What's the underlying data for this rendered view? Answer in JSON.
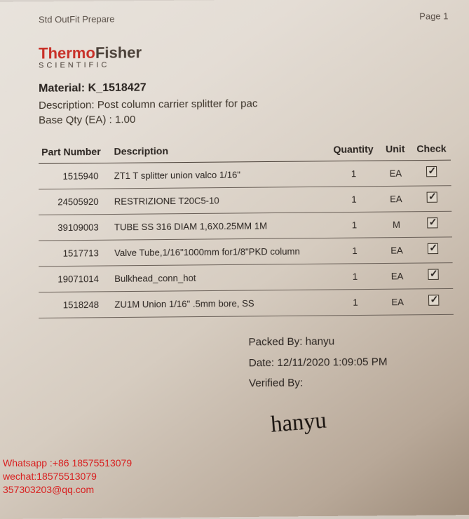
{
  "header": {
    "title_left": "Std OutFit Prepare",
    "title_right": "Page 1"
  },
  "logo": {
    "line1a": "Thermo",
    "line1b": "Fisher",
    "line2": "SCIENTIFIC"
  },
  "material": {
    "label": "Material:",
    "value": "K_1518427",
    "desc_label": "Description:",
    "desc_value": "Post column carrier splitter for pac",
    "base_label": "Base Qty  (EA) :",
    "base_value": "1.00"
  },
  "columns": {
    "part": "Part Number",
    "desc": "Description",
    "qty": "Quantity",
    "unit": "Unit",
    "check": "Check"
  },
  "rows": [
    {
      "part": "1515940",
      "desc": "ZT1 T splitter union valco 1/16\"",
      "qty": "1",
      "unit": "EA",
      "checked": true
    },
    {
      "part": "24505920",
      "desc": "RESTRIZIONE T20C5-10",
      "qty": "1",
      "unit": "EA",
      "checked": true
    },
    {
      "part": "39109003",
      "desc": "TUBE SS 316 DIAM 1,6X0.25MM 1M",
      "qty": "1",
      "unit": "M",
      "checked": true
    },
    {
      "part": "1517713",
      "desc": "Valve Tube,1/16\"1000mm for1/8\"PKD column",
      "qty": "1",
      "unit": "EA",
      "checked": true
    },
    {
      "part": "19071014",
      "desc": "Bulkhead_conn_hot",
      "qty": "1",
      "unit": "EA",
      "checked": true
    },
    {
      "part": "1518248",
      "desc": "ZU1M Union 1/16\" .5mm bore, SS",
      "qty": "1",
      "unit": "EA",
      "checked": true
    }
  ],
  "footer": {
    "packed_label": "Packed By:",
    "packed_by": "hanyu",
    "date_label": "Date:",
    "date_value": "12/11/2020 1:09:05 PM",
    "verified_label": "Verified By:",
    "signature": "hanyu"
  },
  "watermark": {
    "l1": "Whatsapp :+86 18575513079",
    "l2": "wechat:18575513079",
    "l3": "357303203@qq.com"
  },
  "style": {
    "accent_red": "#c83028",
    "text_dark": "#2a2420",
    "border": "#4a4038",
    "row_border": "#6a6058",
    "watermark_color": "#d82020",
    "title_fontsize": 16,
    "body_fontsize": 13
  }
}
